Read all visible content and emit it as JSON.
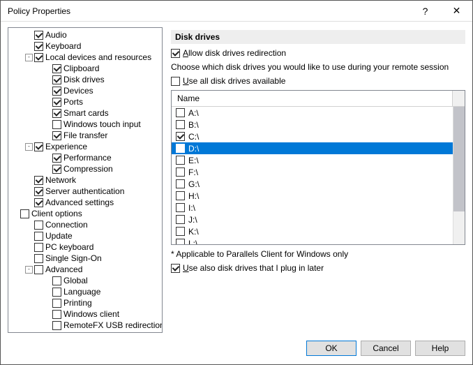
{
  "window": {
    "title": "Policy Properties",
    "help_glyph": "?",
    "close_glyph": "✕"
  },
  "tree": [
    {
      "indent": 20,
      "toggle": null,
      "checked": true,
      "label": "Audio"
    },
    {
      "indent": 20,
      "toggle": null,
      "checked": true,
      "label": "Keyboard"
    },
    {
      "indent": 20,
      "toggle": "-",
      "checked": true,
      "label": "Local devices and resources"
    },
    {
      "indent": 46,
      "toggle": null,
      "checked": true,
      "label": "Clipboard"
    },
    {
      "indent": 46,
      "toggle": null,
      "checked": true,
      "label": "Disk drives"
    },
    {
      "indent": 46,
      "toggle": null,
      "checked": true,
      "label": "Devices"
    },
    {
      "indent": 46,
      "toggle": null,
      "checked": true,
      "label": "Ports"
    },
    {
      "indent": 46,
      "toggle": null,
      "checked": true,
      "label": "Smart cards"
    },
    {
      "indent": 46,
      "toggle": null,
      "checked": false,
      "label": "Windows touch input"
    },
    {
      "indent": 46,
      "toggle": null,
      "checked": true,
      "label": "File transfer"
    },
    {
      "indent": 20,
      "toggle": "-",
      "checked": true,
      "label": "Experience"
    },
    {
      "indent": 46,
      "toggle": null,
      "checked": true,
      "label": "Performance"
    },
    {
      "indent": 46,
      "toggle": null,
      "checked": true,
      "label": "Compression"
    },
    {
      "indent": 20,
      "toggle": null,
      "checked": true,
      "label": "Network"
    },
    {
      "indent": 20,
      "toggle": null,
      "checked": true,
      "label": "Server authentication"
    },
    {
      "indent": 20,
      "toggle": null,
      "checked": true,
      "label": "Advanced settings"
    },
    {
      "indent": 0,
      "toggle": null,
      "checked": false,
      "label": "Client options"
    },
    {
      "indent": 20,
      "toggle": null,
      "checked": false,
      "label": "Connection"
    },
    {
      "indent": 20,
      "toggle": null,
      "checked": false,
      "label": "Update"
    },
    {
      "indent": 20,
      "toggle": null,
      "checked": false,
      "label": "PC keyboard"
    },
    {
      "indent": 20,
      "toggle": null,
      "checked": false,
      "label": "Single Sign-On"
    },
    {
      "indent": 20,
      "toggle": "-",
      "checked": false,
      "label": "Advanced"
    },
    {
      "indent": 46,
      "toggle": null,
      "checked": false,
      "label": "Global"
    },
    {
      "indent": 46,
      "toggle": null,
      "checked": false,
      "label": "Language"
    },
    {
      "indent": 46,
      "toggle": null,
      "checked": false,
      "label": "Printing"
    },
    {
      "indent": 46,
      "toggle": null,
      "checked": false,
      "label": "Windows client"
    },
    {
      "indent": 46,
      "toggle": null,
      "checked": false,
      "label": "RemoteFX USB redirection"
    }
  ],
  "panel": {
    "heading": "Disk drives",
    "allow_label_pre": "A",
    "allow_label_post": "llow disk drives redirection",
    "allow_checked": true,
    "choose_text": "Choose which disk drives you would like to use during your remote session",
    "useall_label_pre": "U",
    "useall_label_post": "se all disk drives available",
    "useall_checked": false,
    "list_header": "Name",
    "drives": [
      {
        "label": "A:\\",
        "checked": false,
        "selected": false
      },
      {
        "label": "B:\\",
        "checked": false,
        "selected": false
      },
      {
        "label": "C:\\",
        "checked": true,
        "selected": false
      },
      {
        "label": "D:\\",
        "checked": true,
        "selected": true
      },
      {
        "label": "E:\\",
        "checked": false,
        "selected": false
      },
      {
        "label": "F:\\",
        "checked": false,
        "selected": false
      },
      {
        "label": "G:\\",
        "checked": false,
        "selected": false
      },
      {
        "label": "H:\\",
        "checked": false,
        "selected": false
      },
      {
        "label": "I:\\",
        "checked": false,
        "selected": false
      },
      {
        "label": "J:\\",
        "checked": false,
        "selected": false
      },
      {
        "label": "K:\\",
        "checked": false,
        "selected": false
      },
      {
        "label": "L:\\",
        "checked": false,
        "selected": false
      }
    ],
    "footnote": "* Applicable to Parallels Client for Windows only",
    "plugin_label_pre": "U",
    "plugin_label_post": "se also disk drives that I plug in later",
    "plugin_checked": true
  },
  "buttons": {
    "ok": "OK",
    "cancel": "Cancel",
    "help": "Help"
  }
}
